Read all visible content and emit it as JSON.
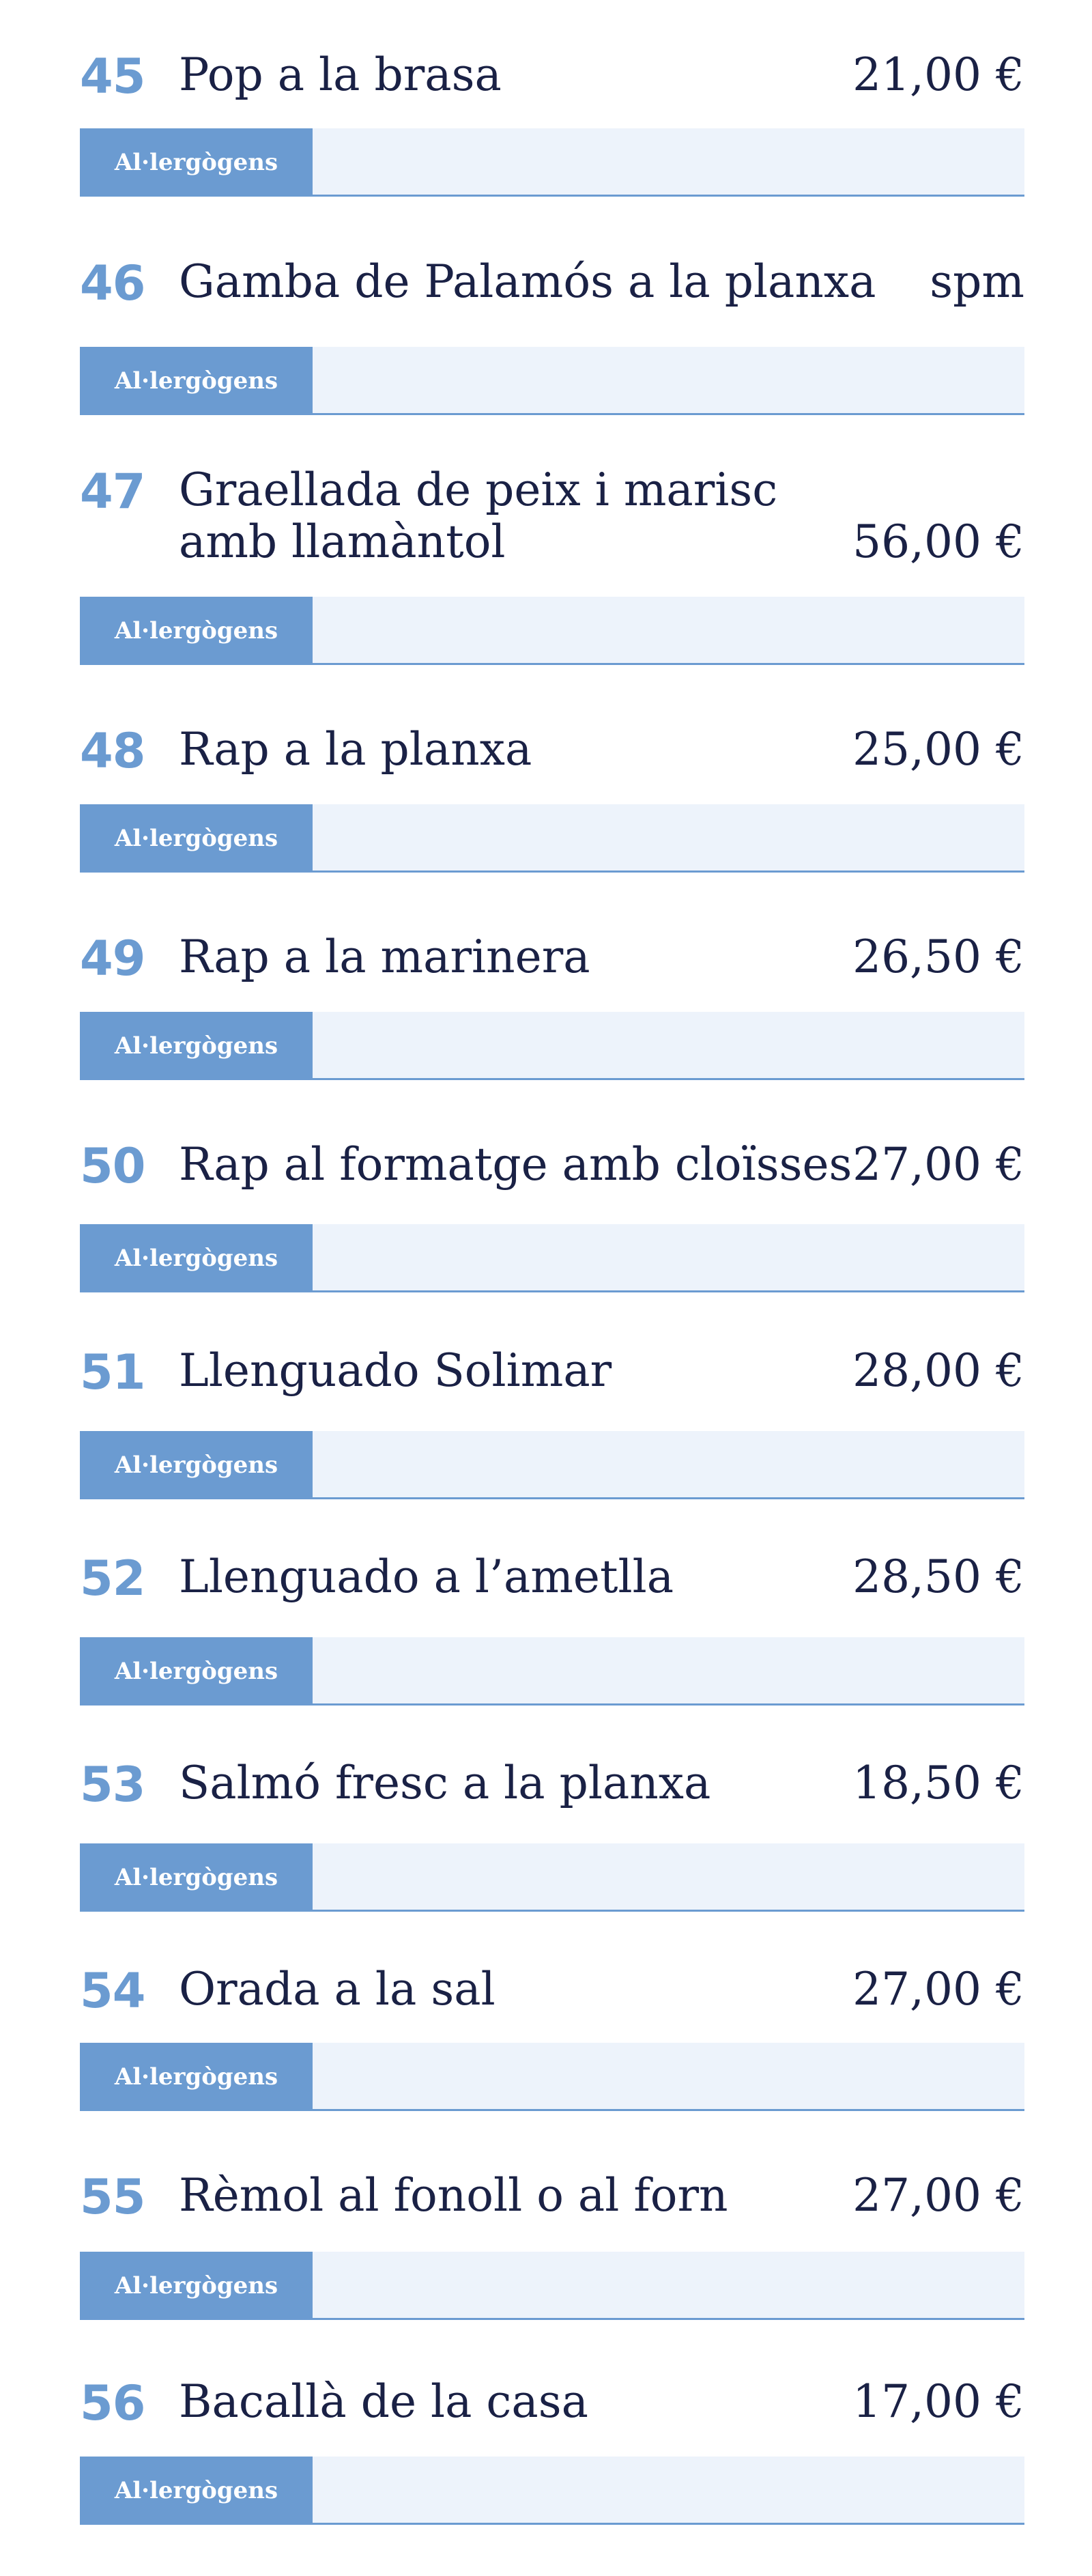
{
  "allergen_label": "Al·lergògens",
  "items": [
    {
      "number": "45",
      "name": "Pop a la brasa",
      "price": "21,00 €"
    },
    {
      "number": "46",
      "name": "Gamba de Palamós a la planxa",
      "price": "spm"
    },
    {
      "number": "47",
      "name_line1": "Graellada de peix i marisc",
      "name_line2": "amb llamàntol",
      "price": "56,00 €"
    },
    {
      "number": "48",
      "name": "Rap a la planxa",
      "price": "25,00 €"
    },
    {
      "number": "49",
      "name": "Rap a la marinera",
      "price": "26,50 €"
    },
    {
      "number": "50",
      "name": "Rap al formatge amb cloïsses",
      "price": "27,00 €"
    },
    {
      "number": "51",
      "name": "Llenguado Solimar",
      "price": "28,00 €"
    },
    {
      "number": "52",
      "name": "Llenguado a l’ametlla",
      "price": "28,50 €"
    },
    {
      "number": "53",
      "name": "Salmó fresc a la planxa",
      "price": "18,50 €"
    },
    {
      "number": "54",
      "name": "Orada a la sal",
      "price": "27,00 €"
    },
    {
      "number": "55",
      "name": "Rèmol al fonoll o al forn",
      "price": "27,00 €"
    },
    {
      "number": "56",
      "name": "Bacallà de la casa",
      "price": "17,00 €"
    }
  ]
}
